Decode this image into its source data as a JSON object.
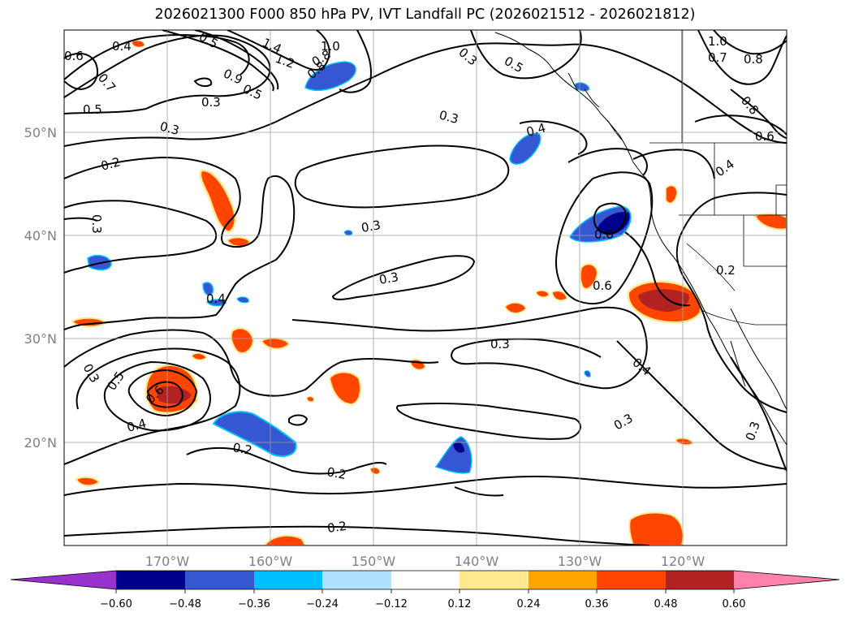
{
  "title": "2026021300 F000 850 hPa PV, IVT Landfall PC (2026021512 - 2026021812)",
  "map": {
    "lon_ticks": [
      "170°W",
      "160°W",
      "150°W",
      "140°W",
      "130°W",
      "120°W"
    ],
    "lat_ticks": [
      "50°N",
      "40°N",
      "30°N",
      "20°N"
    ],
    "contour_labels": [
      "0.4",
      "1.4",
      "1.2",
      "0.8",
      "1.0",
      "0.5",
      "0.8",
      "0.9",
      "0.5",
      "0.6",
      "0.7",
      "0.5",
      "0.3",
      "0.3",
      "0.2",
      "0.3",
      "0.3",
      "0.3",
      "0.4",
      "0.5",
      "1.0",
      "0.7",
      "0.8",
      "0.8",
      "0.6",
      "0.4",
      "0.6",
      "0.3",
      "0.6",
      "0.2",
      "0.4",
      "0.3",
      "0.3",
      "0.4",
      "0.3",
      "0.3",
      "0.5",
      "0.6",
      "0.4",
      "0.2",
      "0.2",
      "0.2",
      "0.3"
    ]
  },
  "colorbar": {
    "ticks": [
      "−0.60",
      "−0.48",
      "−0.36",
      "−0.24",
      "−0.12",
      "0.12",
      "0.24",
      "0.36",
      "0.48",
      "0.60"
    ],
    "colors": [
      "#9932cc",
      "#00008b",
      "#3657d2",
      "#00bfff",
      "#b0e2ff",
      "#ffffff",
      "#ffe98c",
      "#ffa500",
      "#ff4500",
      "#b22222",
      "#ff82ab"
    ]
  }
}
